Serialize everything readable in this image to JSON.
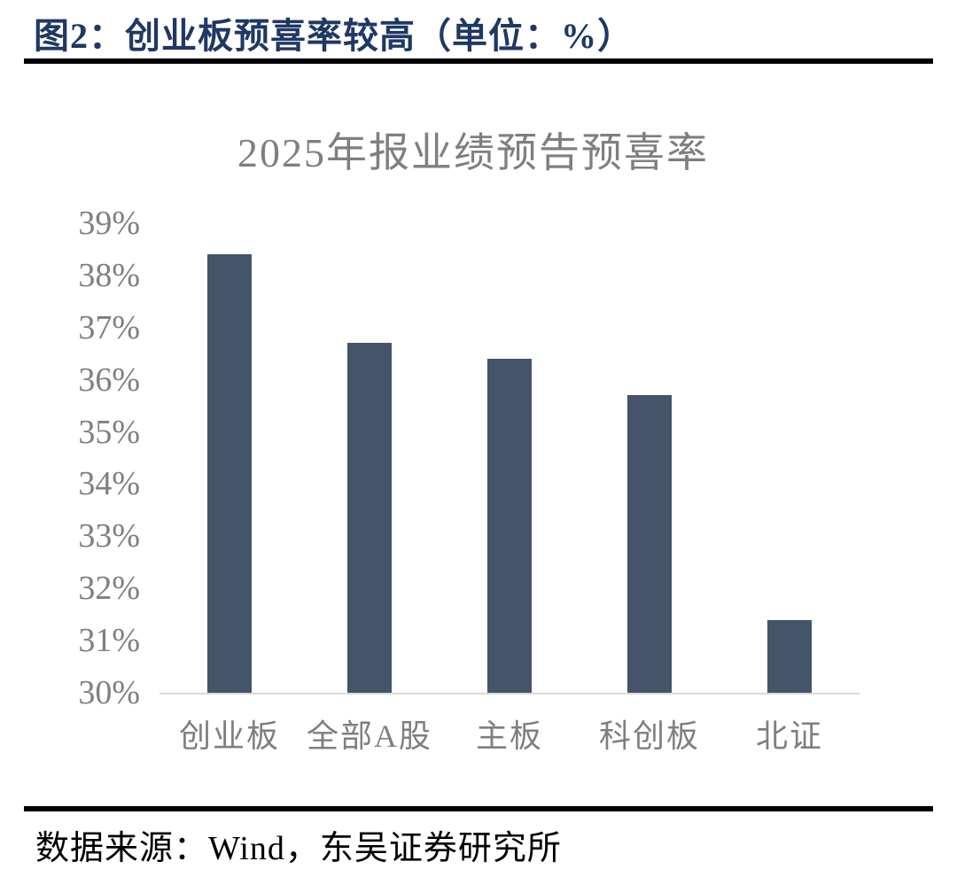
{
  "header": {
    "title": "图2：创业板预喜率较高（单位：%）"
  },
  "chart_data": {
    "type": "bar",
    "title": "2025年报业绩预告预喜率",
    "categories": [
      "创业板",
      "全部A股",
      "主板",
      "科创板",
      "北证"
    ],
    "values": [
      38.4,
      36.7,
      36.4,
      35.7,
      31.4
    ],
    "yticks": [
      "39%",
      "38%",
      "37%",
      "36%",
      "35%",
      "34%",
      "33%",
      "32%",
      "31%",
      "30%"
    ],
    "ylim": [
      30,
      39
    ],
    "xlabel": "",
    "ylabel": "",
    "grid": false,
    "legend": false,
    "bar_color": "#44546A",
    "axis_line_color": "#D9D9D9",
    "tick_label_color": "#7F7F7F",
    "title_color": "#7F7F7F"
  },
  "footer": {
    "source": "数据来源：Wind，东吴证券研究所"
  },
  "colors": {
    "header_text": "#1F3864",
    "divider": "#000000",
    "source_text": "#000000",
    "background": "#FFFFFF"
  }
}
